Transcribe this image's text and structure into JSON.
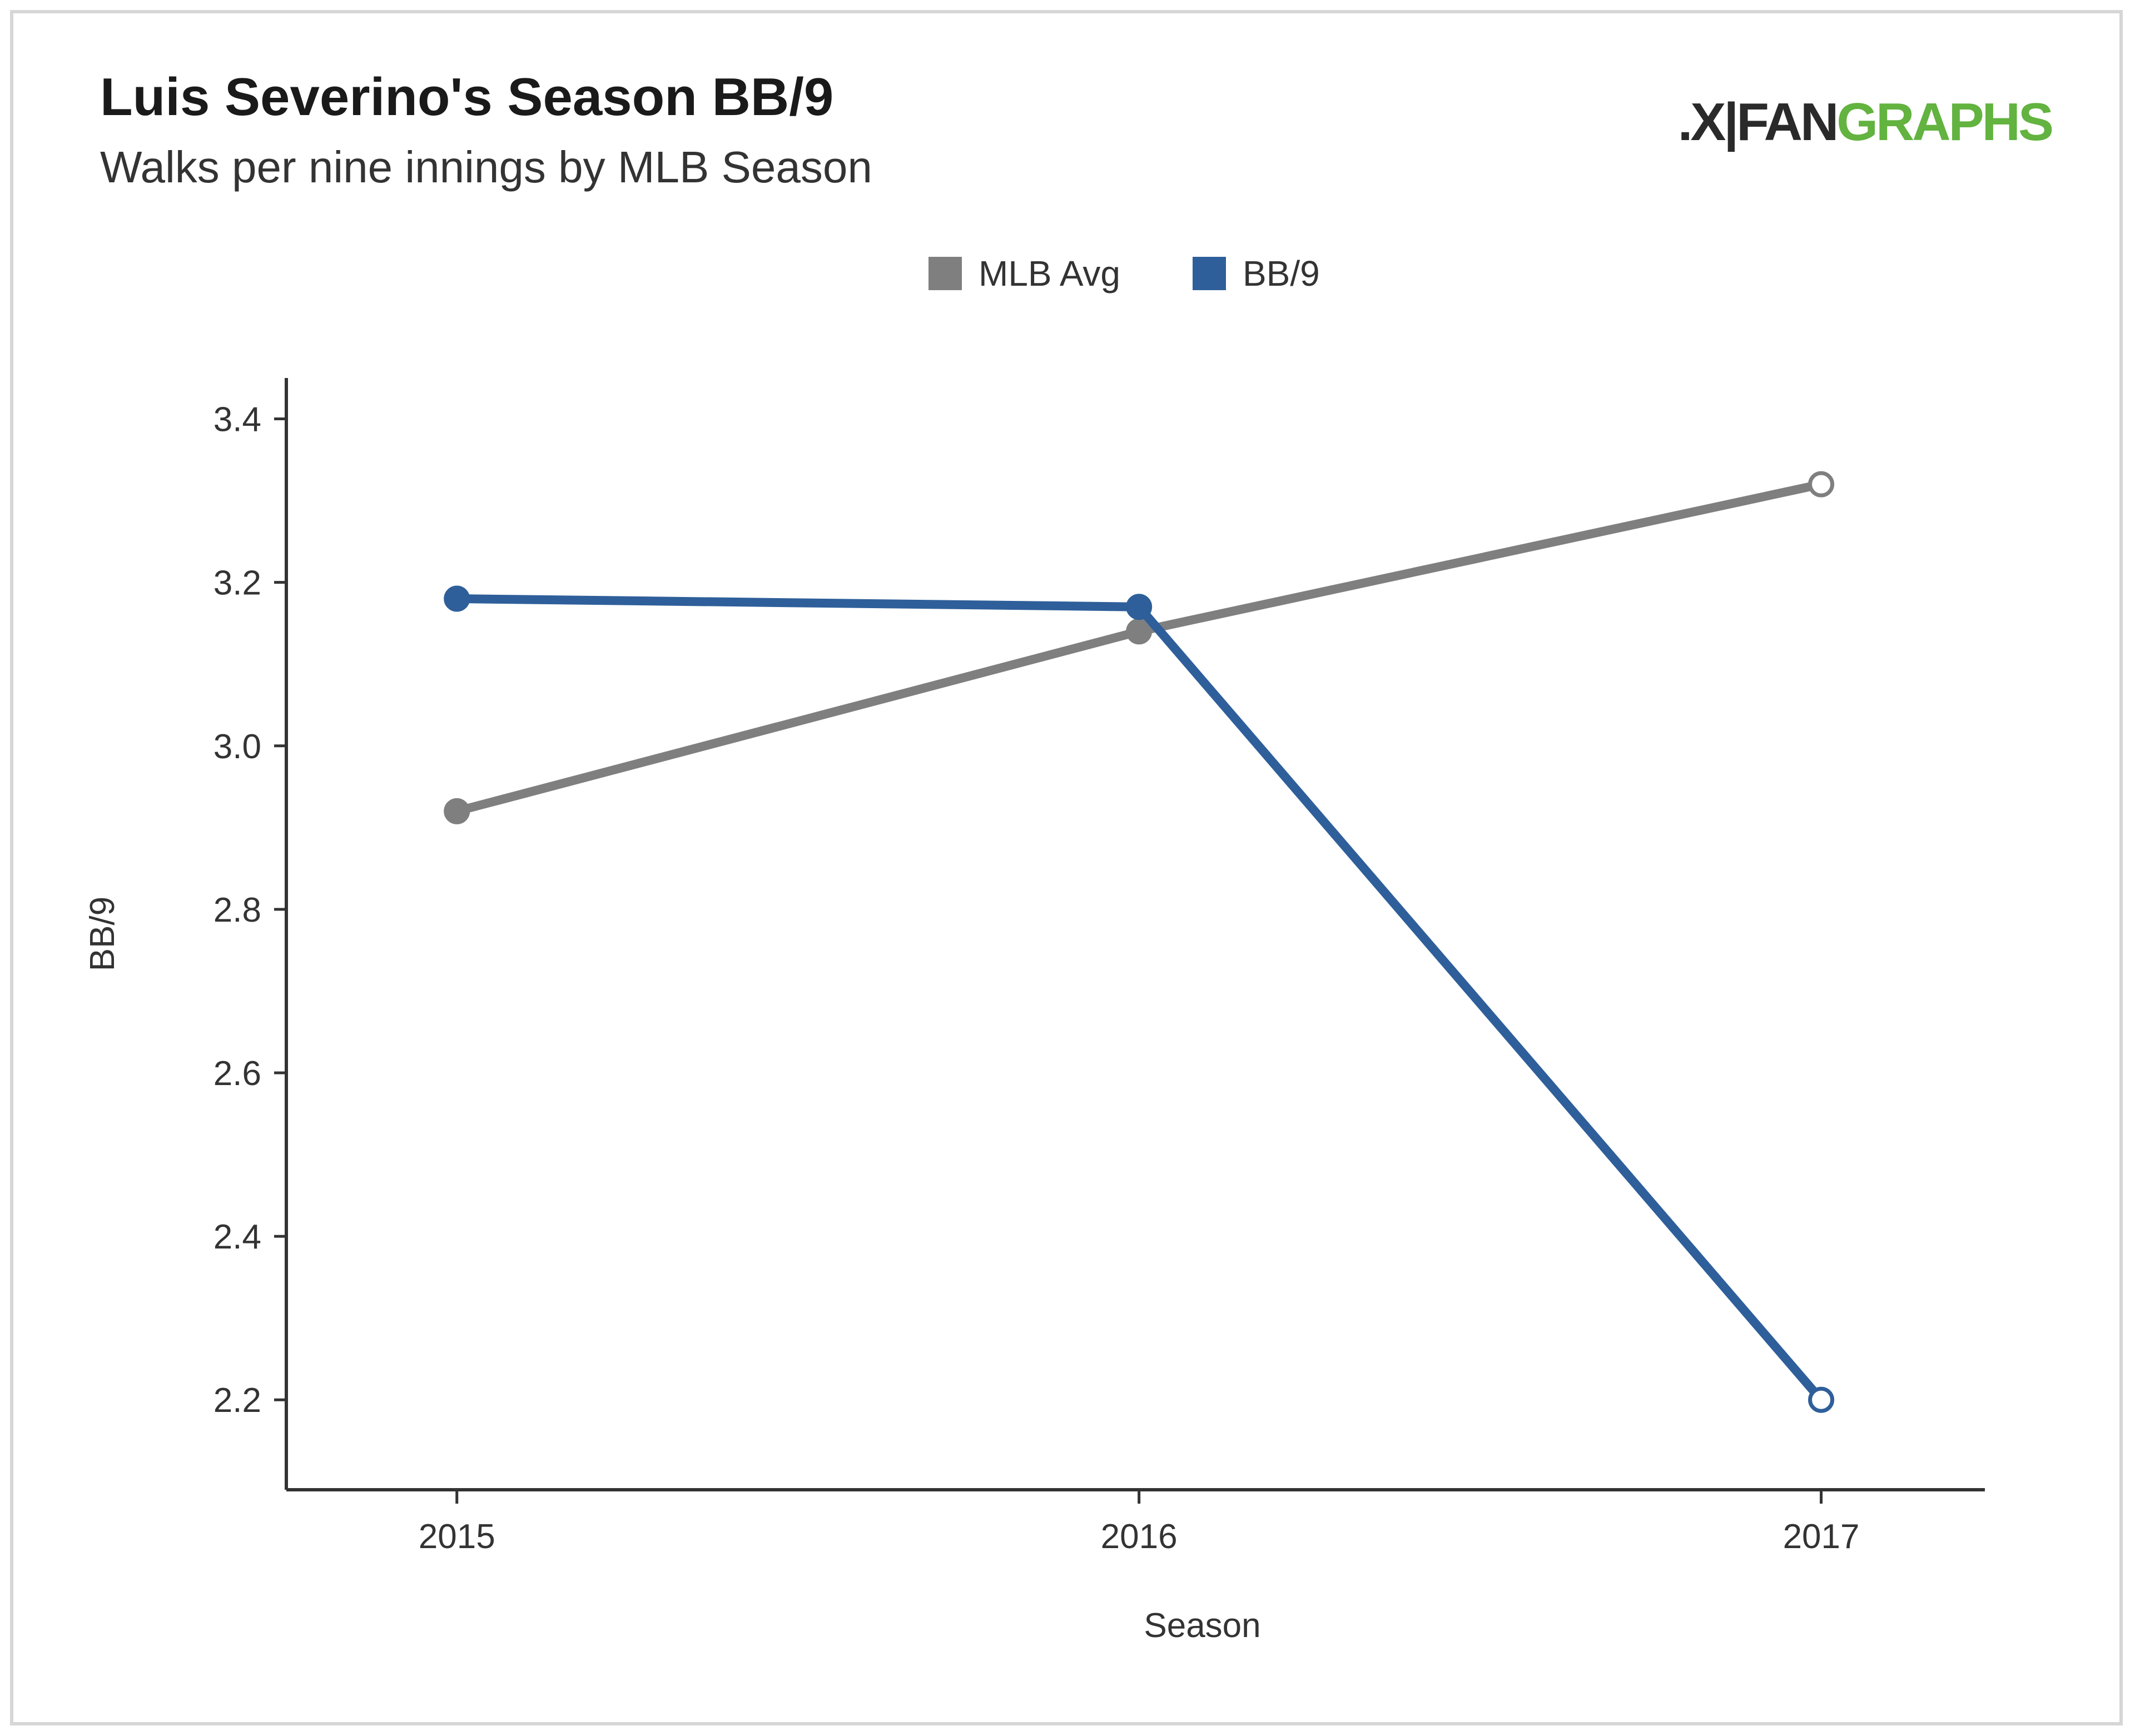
{
  "title": "Luis Severino's Season BB/9",
  "subtitle": "Walks per nine innings by MLB Season",
  "logo": {
    "mark": ".X|",
    "fan": "FAN",
    "graphs": "GRAPHS"
  },
  "colors": {
    "mlb_avg": "#7f7f7f",
    "bb9": "#2e5f9a",
    "logo_green": "#62b33f"
  },
  "chart_data": {
    "type": "line",
    "x": [
      2015,
      2016,
      2017
    ],
    "xticks": [
      "2015",
      "2016",
      "2017"
    ],
    "yticks": [
      "2.2",
      "2.4",
      "2.6",
      "2.8",
      "3.0",
      "3.2",
      "3.4"
    ],
    "ytick_values": [
      2.2,
      2.4,
      2.6,
      2.8,
      3.0,
      3.2,
      3.4
    ],
    "xlabel": "Season",
    "ylabel": "BB/9",
    "ylim": [
      2.09,
      3.45
    ],
    "xlim": [
      2014.75,
      2017.24
    ],
    "legend_position": "top-center",
    "grid": false,
    "series": [
      {
        "name": "MLB Avg",
        "color": "#7f7f7f",
        "values": [
          2.92,
          3.14,
          3.32
        ],
        "hollow_last": true
      },
      {
        "name": "BB/9",
        "color": "#2e5f9a",
        "values": [
          3.18,
          3.17,
          2.2
        ],
        "hollow_last": true
      }
    ]
  }
}
